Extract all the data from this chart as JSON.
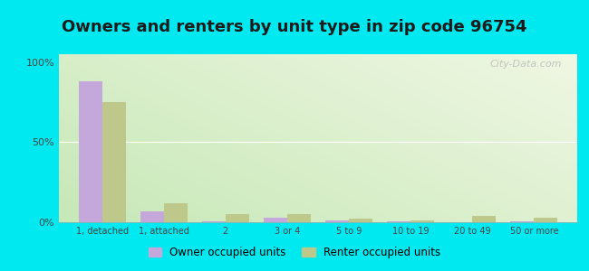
{
  "title": "Owners and renters by unit type in zip code 96754",
  "categories": [
    "1, detached",
    "1, attached",
    "2",
    "3 or 4",
    "5 to 9",
    "10 to 19",
    "20 to 49",
    "50 or more"
  ],
  "owner_values": [
    88,
    7,
    0.5,
    3,
    1,
    0.3,
    0,
    0.3
  ],
  "renter_values": [
    75,
    12,
    5,
    5,
    2,
    1,
    4,
    3
  ],
  "owner_color": "#c4a8dc",
  "renter_color": "#bec88a",
  "title_fontsize": 13,
  "ylabel_ticks": [
    "0%",
    "50%",
    "100%"
  ],
  "ylabel_values": [
    0,
    50,
    100
  ],
  "background_outer": "#00e8f0",
  "watermark": "City-Data.com",
  "legend_owner": "Owner occupied units",
  "legend_renter": "Renter occupied units",
  "ylim": [
    0,
    105
  ],
  "bar_width": 0.38
}
